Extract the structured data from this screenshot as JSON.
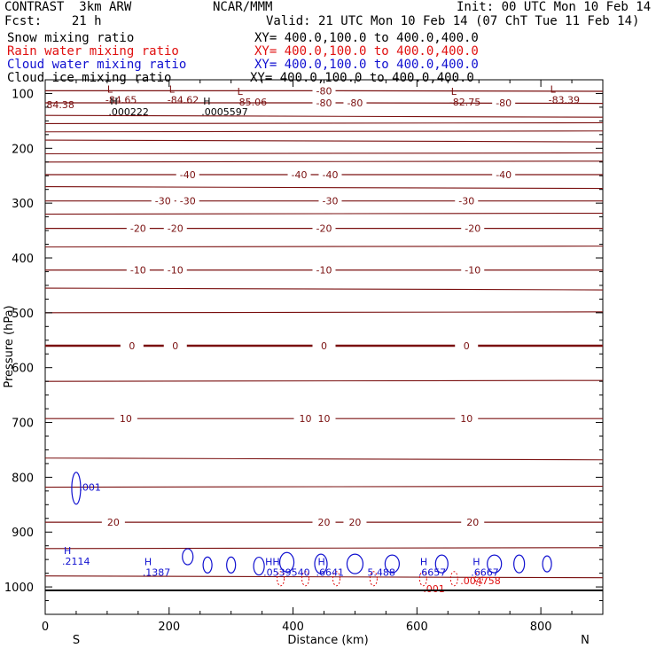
{
  "header": {
    "model": "CONTRAST  3km ARW",
    "org": "NCAR/MMM",
    "init": "Init: 00 UTC Mon 10 Feb 14",
    "fcst": "Fcst:    21 h",
    "valid": "Valid: 21 UTC Mon 10 Feb 14 (07 ChT Tue 11 Feb 14)",
    "fields": [
      {
        "name": "Snow mixing ratio",
        "xy": "XY= 400.0,100.0 to 400.0,400.0",
        "color": "#000000"
      },
      {
        "name": "Rain water mixing ratio",
        "xy": "XY= 400.0,100.0 to 400.0,400.0",
        "color": "#e01010"
      },
      {
        "name": "Cloud water mixing ratio",
        "xy": "XY= 400.0,100.0 to 400.0,400.0",
        "color": "#1010d0"
      },
      {
        "name": "Cloud ice mixing ratio",
        "xy": "XY= 400.0,100.0 to 400.0,400.0",
        "color": "#000000"
      }
    ]
  },
  "chart_data": {
    "type": "line",
    "xlabel": "Distance (km)",
    "ylabel": "Pressure (hPa)",
    "xlim": [
      0,
      900
    ],
    "ylim": [
      1050,
      75
    ],
    "x_ticks": [
      0,
      200,
      400,
      600,
      800
    ],
    "y_ticks": [
      100,
      200,
      300,
      400,
      500,
      600,
      700,
      800,
      900,
      1000
    ],
    "x_end_labels": {
      "left": "S",
      "right": "N"
    },
    "temperature_color": "#7a1010",
    "temperature_contours": [
      {
        "level": "-80",
        "x": [
          0,
          450,
          900
        ],
        "y": [
          95,
          95,
          96
        ],
        "labels": [
          [
            450,
            "-80"
          ]
        ]
      },
      {
        "level": "-80",
        "x": [
          0,
          450,
          900
        ],
        "y": [
          117,
          117,
          118
        ],
        "labels": [
          [
            450,
            "-80"
          ],
          [
            500,
            "-80"
          ],
          [
            740,
            "-80"
          ]
        ]
      },
      {
        "level": "-40",
        "x": [
          0,
          900
        ],
        "y": [
          248,
          248
        ],
        "labels": [
          [
            230,
            "-40"
          ],
          [
            410,
            "-40"
          ],
          [
            460,
            "-40"
          ],
          [
            740,
            "-40"
          ]
        ]
      },
      {
        "level": "-30",
        "x": [
          0,
          900
        ],
        "y": [
          296,
          296
        ],
        "labels": [
          [
            190,
            "-30"
          ],
          [
            230,
            "-30"
          ],
          [
            460,
            "-30"
          ],
          [
            680,
            "-30"
          ]
        ]
      },
      {
        "level": "-20",
        "x": [
          0,
          900
        ],
        "y": [
          346,
          346
        ],
        "labels": [
          [
            150,
            "-20"
          ],
          [
            210,
            "-20"
          ],
          [
            450,
            "-20"
          ],
          [
            690,
            "-20"
          ]
        ]
      },
      {
        "level": "-10",
        "x": [
          0,
          900
        ],
        "y": [
          422,
          422
        ],
        "labels": [
          [
            150,
            "-10"
          ],
          [
            210,
            "-10"
          ],
          [
            450,
            "-10"
          ],
          [
            690,
            "-10"
          ]
        ]
      },
      {
        "level": "0",
        "x": [
          0,
          900
        ],
        "y": [
          560,
          560
        ],
        "labels": [
          [
            140,
            "0"
          ],
          [
            210,
            "0"
          ],
          [
            450,
            "0"
          ],
          [
            680,
            "0"
          ]
        ]
      },
      {
        "level": "10",
        "x": [
          0,
          900
        ],
        "y": [
          693,
          693
        ],
        "labels": [
          [
            130,
            "10"
          ],
          [
            420,
            "10"
          ],
          [
            450,
            "10"
          ],
          [
            680,
            "10"
          ]
        ]
      },
      {
        "level": "20",
        "x": [
          0,
          900
        ],
        "y": [
          882,
          882
        ],
        "labels": [
          [
            110,
            "20"
          ],
          [
            450,
            "20"
          ],
          [
            500,
            "20"
          ],
          [
            690,
            "20"
          ]
        ]
      }
    ],
    "extrema": [
      {
        "kind": "L",
        "x": 100,
        "p": 108,
        "value": "-84.65",
        "color": "#7a1010"
      },
      {
        "kind": "L",
        "x": 200,
        "p": 108,
        "value": "-84.62",
        "color": "#7a1010"
      },
      {
        "kind": "L",
        "x": 310,
        "p": 112,
        "value": "-85.06",
        "color": "#7a1010"
      },
      {
        "kind": "L",
        "x": 655,
        "p": 112,
        "value": "-82.75",
        "color": "#7a1010"
      },
      {
        "kind": "L",
        "x": 815,
        "p": 108,
        "value": "-83.39",
        "color": "#7a1010"
      },
      {
        "kind": "",
        "x": 2,
        "p": 117,
        "value": "84.38",
        "color": "#7a1010"
      },
      {
        "kind": "H",
        "x": 105,
        "p": 130,
        "value": ".000222",
        "color": "#000000"
      },
      {
        "kind": "H",
        "x": 255,
        "p": 130,
        "value": ".0005597",
        "color": "#000000"
      },
      {
        "kind": "",
        "x": 55,
        "p": 815,
        "value": ".001",
        "color": "#1010d0"
      },
      {
        "kind": "H",
        "x": 30,
        "p": 950,
        "value": ".2114",
        "color": "#1010d0"
      },
      {
        "kind": "H",
        "x": 160,
        "p": 970,
        "value": ".1387",
        "color": "#1010d0"
      },
      {
        "kind": "HH",
        "x": 355,
        "p": 970,
        "value": ".0539540",
        "color": "#1010d0"
      },
      {
        "kind": "H",
        "x": 440,
        "p": 970,
        "value": ".6641",
        "color": "#1010d0"
      },
      {
        "kind": "",
        "x": 520,
        "p": 970,
        "value": "5.488",
        "color": "#1010d0"
      },
      {
        "kind": "H",
        "x": 605,
        "p": 970,
        "value": ".6657",
        "color": "#1010d0"
      },
      {
        "kind": "H",
        "x": 690,
        "p": 970,
        "value": ".6667",
        "color": "#1010d0"
      },
      {
        "kind": "",
        "x": 670,
        "p": 985,
        "value": ".004758",
        "color": "#e01010"
      },
      {
        "kind": "",
        "x": 610,
        "p": 1000,
        "value": ".001",
        "color": "#e01010"
      }
    ]
  }
}
